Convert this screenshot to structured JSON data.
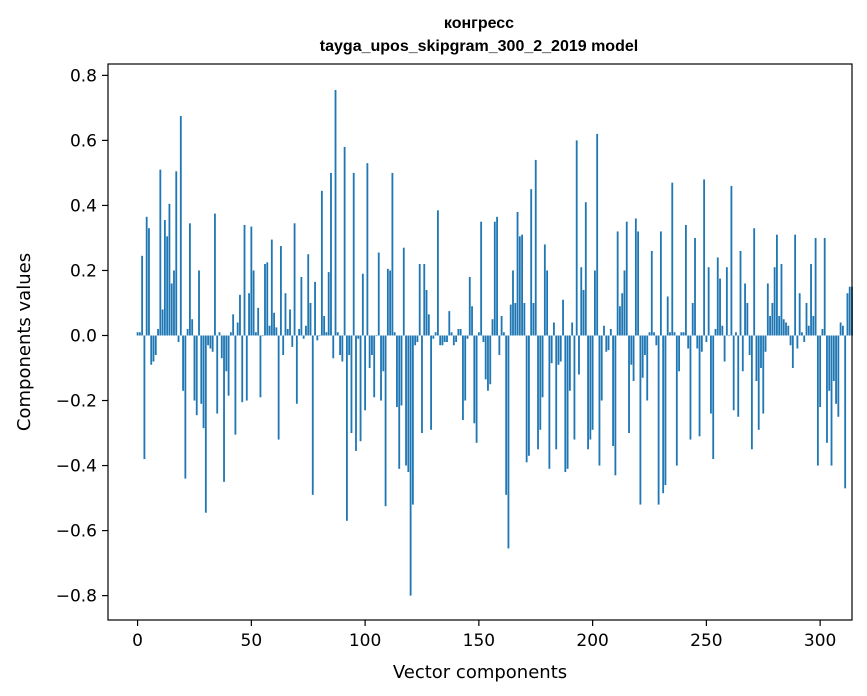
{
  "chart_data": {
    "type": "bar",
    "title_line1": "конгресс",
    "title_line2": "tayga_upos_skipgram_300_2_2019 model",
    "xlabel": "Vector components",
    "ylabel": "Components values",
    "xlim": [
      -13,
      314
    ],
    "ylim": [
      -0.875,
      0.835
    ],
    "xticks": [
      0,
      50,
      100,
      150,
      200,
      250,
      300
    ],
    "xtick_labels": [
      "0",
      "50",
      "100",
      "150",
      "200",
      "250",
      "300"
    ],
    "yticks": [
      -0.8,
      -0.6,
      -0.4,
      -0.2,
      0.0,
      0.2,
      0.4,
      0.6,
      0.8
    ],
    "ytick_labels": [
      "−0.8",
      "−0.6",
      "−0.4",
      "−0.2",
      "0.0",
      "0.2",
      "0.4",
      "0.6",
      "0.8"
    ],
    "bar_color": "#1f77b4",
    "grid": false,
    "values": [
      0.01,
      0.01,
      0.245,
      -0.38,
      0.365,
      0.33,
      -0.09,
      -0.08,
      -0.06,
      0.02,
      0.51,
      0.08,
      0.355,
      0.305,
      0.405,
      0.16,
      0.2,
      0.505,
      -0.02,
      0.675,
      -0.17,
      -0.44,
      0.02,
      0.345,
      0.05,
      -0.2,
      -0.245,
      0.2,
      -0.21,
      -0.285,
      -0.545,
      -0.03,
      -0.04,
      -0.05,
      0.375,
      -0.24,
      0.01,
      -0.07,
      -0.45,
      -0.11,
      -0.185,
      0.01,
      0.065,
      -0.305,
      0.04,
      0.125,
      -0.205,
      0.34,
      -0.2,
      0.13,
      0.335,
      0.2,
      0.01,
      0.085,
      -0.19,
      0.0,
      0.22,
      0.225,
      0.03,
      0.295,
      0.07,
      0.025,
      -0.32,
      0.275,
      -0.06,
      0.13,
      0.02,
      0.08,
      -0.035,
      0.345,
      -0.21,
      0.02,
      0.18,
      -0.01,
      0.03,
      0.25,
      0.1,
      -0.49,
      0.165,
      -0.015,
      0.0,
      0.445,
      0.06,
      0.01,
      0.195,
      0.5,
      -0.07,
      0.755,
      0.01,
      -0.06,
      -0.08,
      0.58,
      -0.57,
      -0.06,
      -0.3,
      0.5,
      -0.355,
      -0.01,
      -0.325,
      0.19,
      -0.23,
      0.53,
      -0.1,
      -0.06,
      -0.19,
      0.0,
      0.255,
      -0.2,
      -0.11,
      -0.525,
      0.205,
      0.2,
      0.5,
      0.01,
      -0.22,
      -0.41,
      -0.215,
      0.27,
      -0.4,
      -0.42,
      -0.8,
      -0.52,
      -0.03,
      -0.02,
      0.22,
      -0.3,
      0.22,
      0.14,
      0.065,
      -0.29,
      -0.01,
      0.01,
      0.385,
      -0.03,
      -0.03,
      -0.02,
      -0.02,
      0.075,
      0.01,
      -0.03,
      -0.02,
      0.02,
      0.02,
      -0.26,
      -0.2,
      -0.01,
      0.18,
      0.09,
      -0.27,
      -0.33,
      0.01,
      0.35,
      -0.02,
      -0.135,
      -0.17,
      -0.15,
      0.05,
      0.35,
      0.365,
      -0.06,
      0.06,
      0.01,
      -0.49,
      -0.655,
      0.095,
      0.2,
      0.1,
      0.38,
      0.305,
      0.31,
      0.1,
      -0.39,
      -0.37,
      0.45,
      0.1,
      0.54,
      -0.35,
      -0.29,
      -0.19,
      0.28,
      0.2,
      -0.41,
      -0.085,
      0.04,
      -0.35,
      -0.09,
      -0.08,
      0.11,
      -0.42,
      -0.41,
      -0.17,
      0.04,
      -0.32,
      0.6,
      -0.12,
      0.21,
      0.14,
      0.41,
      -0.35,
      -0.32,
      -0.29,
      0.2,
      0.62,
      -0.4,
      -0.2,
      0.03,
      -0.05,
      -0.045,
      0.02,
      -0.34,
      -0.43,
      0.32,
      0.09,
      0.13,
      0.2,
      0.35,
      -0.3,
      -0.09,
      -0.14,
      0.36,
      0.32,
      -0.52,
      -0.13,
      -0.06,
      -0.2,
      0.01,
      0.26,
      0.01,
      -0.03,
      -0.52,
      0.32,
      -0.485,
      -0.46,
      0.12,
      0.01,
      0.47,
      0.01,
      -0.4,
      -0.11,
      0.01,
      0.01,
      0.34,
      -0.04,
      -0.32,
      0.1,
      0.3,
      -0.04,
      -0.31,
      -0.05,
      0.48,
      -0.02,
      0.21,
      -0.24,
      -0.38,
      0.02,
      0.24,
      0.175,
      0.03,
      -0.08,
      0.21,
      0.0,
      0.46,
      -0.23,
      0.01,
      -0.25,
      0.26,
      -0.11,
      0.16,
      0.1,
      -0.06,
      -0.35,
      0.33,
      -0.14,
      -0.29,
      -0.1,
      -0.24,
      -0.05,
      0.16,
      0.06,
      0.1,
      0.21,
      0.31,
      0.06,
      0.22,
      0.05,
      0.04,
      0.03,
      -0.03,
      -0.1,
      0.31,
      -0.04,
      0.13,
      0.01,
      -0.02,
      0.1,
      0.03,
      0.22,
      0.06,
      0.3,
      -0.4,
      -0.22,
      0.02,
      0.3,
      -0.33,
      -0.17,
      -0.4,
      -0.14,
      -0.21,
      -0.25,
      0.04,
      0.03,
      -0.47,
      0.13,
      0.15,
      0.15
    ]
  }
}
